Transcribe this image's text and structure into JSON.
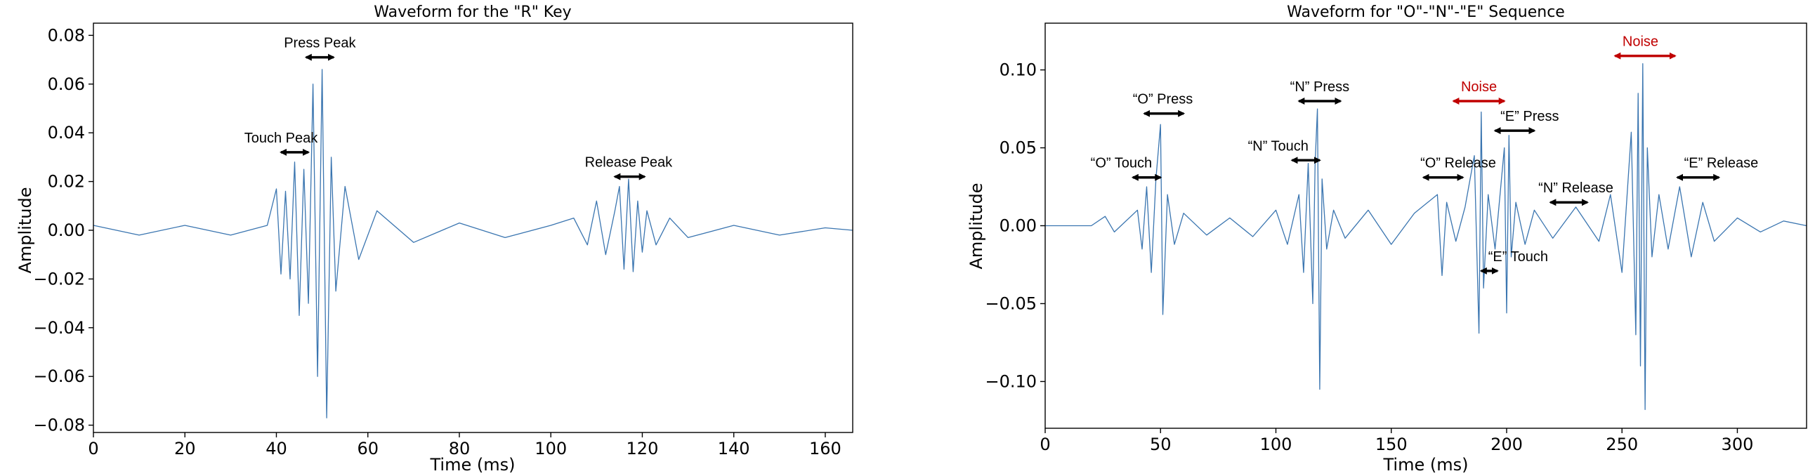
{
  "chart_data": [
    {
      "type": "line",
      "title": "Waveform for the \"R\" Key",
      "xlabel": "Time (ms)",
      "ylabel": "Amplitude",
      "xlim": [
        0,
        166
      ],
      "ylim": [
        -0.083,
        0.085
      ],
      "xticks": [
        0,
        20,
        40,
        60,
        80,
        100,
        120,
        140,
        160
      ],
      "xtick_labels": [
        "0",
        "20",
        "40",
        "60",
        "80",
        "100",
        "120",
        "140",
        "160"
      ],
      "yticks": [
        -0.08,
        -0.06,
        -0.04,
        -0.02,
        0.0,
        0.02,
        0.04,
        0.06,
        0.08
      ],
      "ytick_labels": [
        "−0.08",
        "−0.06",
        "−0.04",
        "−0.02",
        "0.00",
        "0.02",
        "0.04",
        "0.06",
        "0.08"
      ],
      "grid": false,
      "color": "#3a75b0",
      "series": [
        {
          "x": [
            0,
            10,
            20,
            30,
            38,
            40,
            41,
            42,
            43,
            44,
            45,
            46,
            47,
            48,
            49,
            50,
            51,
            52,
            53,
            55,
            58,
            62,
            70,
            80,
            90,
            100,
            105,
            108,
            110,
            112,
            114,
            115,
            116,
            117,
            118,
            119,
            120,
            121,
            123,
            126,
            130,
            140,
            150,
            160,
            166
          ],
          "y": [
            0.002,
            -0.002,
            0.002,
            -0.002,
            0.002,
            0.017,
            -0.018,
            0.016,
            -0.02,
            0.028,
            -0.035,
            0.025,
            -0.03,
            0.06,
            -0.06,
            0.066,
            -0.077,
            0.03,
            -0.025,
            0.018,
            -0.012,
            0.008,
            -0.005,
            0.003,
            -0.003,
            0.002,
            0.005,
            -0.006,
            0.012,
            -0.01,
            0.008,
            0.018,
            -0.016,
            0.021,
            -0.017,
            0.012,
            -0.009,
            0.008,
            -0.006,
            0.005,
            -0.003,
            0.002,
            -0.002,
            0.001,
            0.0
          ]
        }
      ],
      "annotations": [
        {
          "text": "Press Peak",
          "x": 49.5,
          "y": 0.071,
          "arrow_from": 46.5,
          "arrow_to": 52.5,
          "color": "#000000"
        },
        {
          "text": "Touch Peak",
          "x": 41,
          "y": 0.032,
          "arrow_from": 41,
          "arrow_to": 47,
          "color": "#000000"
        },
        {
          "text": "Release Peak",
          "x": 117,
          "y": 0.022,
          "arrow_from": 114,
          "arrow_to": 120.5,
          "color": "#000000"
        }
      ]
    },
    {
      "type": "line",
      "title": "Waveform for \"O\"-\"N\"-\"E\" Sequence",
      "xlabel": "Time (ms)",
      "ylabel": "Amplitude",
      "xlim": [
        0,
        330
      ],
      "ylim": [
        -0.13,
        0.13
      ],
      "xticks": [
        0,
        50,
        100,
        150,
        200,
        250,
        300
      ],
      "xtick_labels": [
        "0",
        "50",
        "100",
        "150",
        "200",
        "250",
        "300"
      ],
      "yticks": [
        -0.1,
        -0.05,
        0.0,
        0.05,
        0.1
      ],
      "ytick_labels": [
        "−0.10",
        "−0.05",
        "0.00",
        "0.05",
        "0.10"
      ],
      "grid": false,
      "color": "#3a75b0",
      "series": [
        {
          "x": [
            0,
            20,
            26,
            30,
            40,
            42,
            44,
            46,
            48,
            50,
            51,
            53,
            56,
            60,
            70,
            80,
            90,
            100,
            105,
            110,
            112,
            114,
            116,
            117,
            118,
            119,
            120,
            122,
            125,
            130,
            140,
            150,
            160,
            170,
            172,
            174,
            178,
            182,
            186,
            188,
            189,
            190,
            192,
            195,
            199,
            200,
            201,
            202,
            204,
            208,
            212,
            220,
            230,
            240,
            245,
            250,
            254,
            256,
            257,
            258,
            259,
            260,
            261,
            263,
            266,
            270,
            275,
            280,
            285,
            290,
            300,
            310,
            320,
            330
          ],
          "y": [
            0.0,
            0.0,
            0.006,
            -0.004,
            0.01,
            -0.015,
            0.025,
            -0.03,
            0.03,
            0.065,
            -0.057,
            0.02,
            -0.012,
            0.008,
            -0.006,
            0.005,
            -0.007,
            0.01,
            -0.012,
            0.02,
            -0.03,
            0.04,
            -0.05,
            0.04,
            0.075,
            -0.105,
            0.03,
            -0.015,
            0.01,
            -0.008,
            0.01,
            -0.012,
            0.008,
            0.02,
            -0.032,
            0.015,
            -0.01,
            0.012,
            0.045,
            -0.069,
            0.073,
            -0.04,
            0.02,
            -0.015,
            0.05,
            -0.056,
            0.058,
            -0.02,
            0.015,
            -0.012,
            0.01,
            -0.008,
            0.012,
            -0.01,
            0.02,
            -0.03,
            0.06,
            -0.07,
            0.085,
            -0.09,
            0.104,
            -0.118,
            0.05,
            -0.02,
            0.02,
            -0.015,
            0.025,
            -0.02,
            0.015,
            -0.01,
            0.005,
            -0.004,
            0.003,
            0.0
          ]
        }
      ],
      "annotations": [
        {
          "text": "“O” Press",
          "x": 51,
          "y": 0.072,
          "arrow_from": 43,
          "arrow_to": 60,
          "color": "#000000"
        },
        {
          "text": "“O” Touch",
          "x": 33,
          "y": 0.031,
          "arrow_from": 38,
          "arrow_to": 50,
          "color": "#000000"
        },
        {
          "text": "“N” Press",
          "x": 119,
          "y": 0.08,
          "arrow_from": 110,
          "arrow_to": 128,
          "color": "#000000"
        },
        {
          "text": "“N” Touch",
          "x": 101,
          "y": 0.042,
          "arrow_from": 107,
          "arrow_to": 119,
          "color": "#000000"
        },
        {
          "text": "Noise",
          "x": 188,
          "y": 0.08,
          "arrow_from": 177,
          "arrow_to": 199,
          "color": "#c00000"
        },
        {
          "text": "“E” Press",
          "x": 210,
          "y": 0.061,
          "arrow_from": 195,
          "arrow_to": 212,
          "color": "#000000"
        },
        {
          "text": "“O” Release",
          "x": 179,
          "y": 0.031,
          "arrow_from": 164,
          "arrow_to": 181,
          "color": "#000000"
        },
        {
          "text": "“N” Release",
          "x": 230,
          "y": 0.015,
          "arrow_from": 219,
          "arrow_to": 235,
          "color": "#000000"
        },
        {
          "text": "“E” Touch",
          "x": 205,
          "y": -0.029,
          "arrow_from": 189,
          "arrow_to": 196,
          "color": "#000000"
        },
        {
          "text": "Noise",
          "x": 258,
          "y": 0.109,
          "arrow_from": 247,
          "arrow_to": 273,
          "color": "#c00000"
        },
        {
          "text": "“E” Release",
          "x": 293,
          "y": 0.031,
          "arrow_from": 274,
          "arrow_to": 292,
          "color": "#000000"
        }
      ]
    }
  ]
}
